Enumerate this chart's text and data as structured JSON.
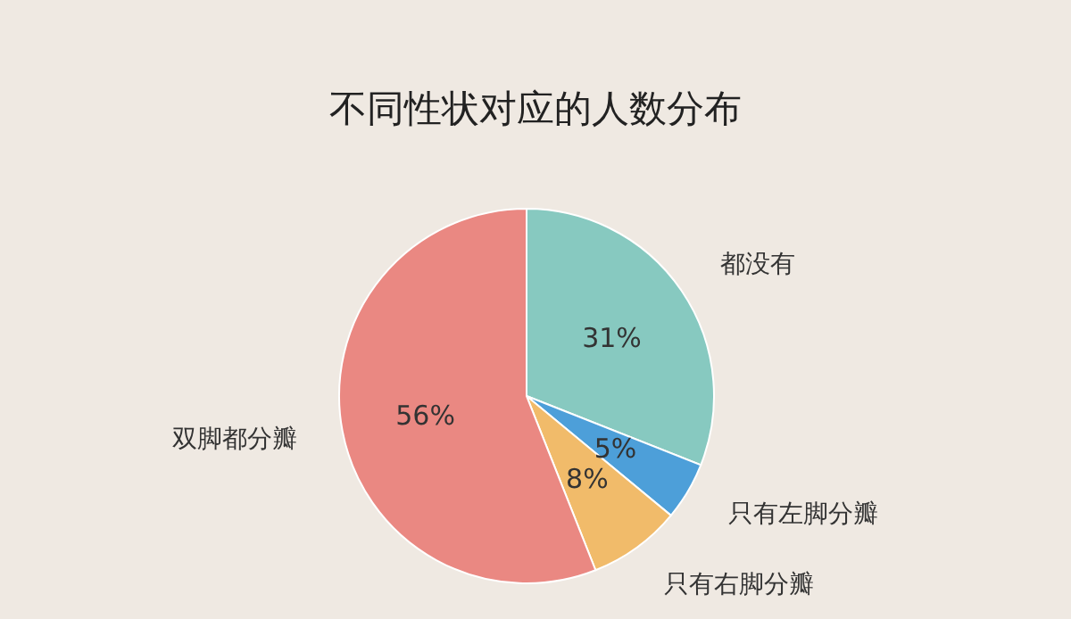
{
  "chart_data": {
    "type": "pie",
    "title": "不同性状对应的人数分布",
    "categories": [
      "都没有",
      "只有左脚分瓣",
      "只有右脚分瓣",
      "双脚都分瓣"
    ],
    "values": [
      31,
      5,
      8,
      56
    ],
    "colors": [
      "#87c9c0",
      "#4d9fd9",
      "#f1bb6a",
      "#ea8882"
    ],
    "value_labels": [
      "31%",
      "5%",
      "8%",
      "56%"
    ]
  }
}
